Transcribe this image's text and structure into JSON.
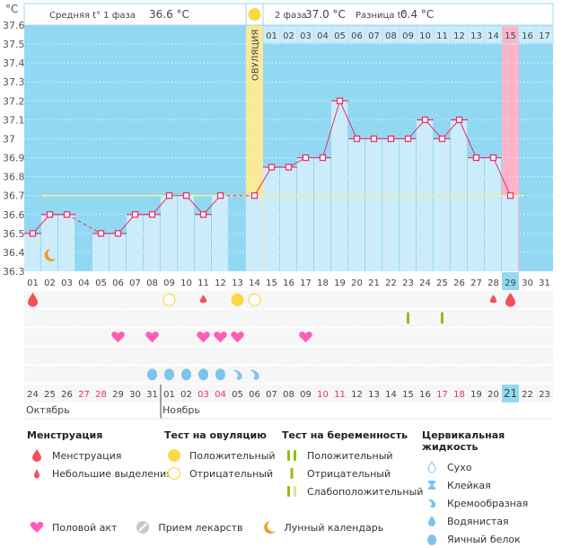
{
  "chart_data": {
    "type": "line",
    "title": "",
    "ylabel": "°C",
    "ylim": [
      36.3,
      37.6
    ],
    "yticks": [
      "37.6",
      "37.5",
      "37.4",
      "37.3",
      "37.2",
      "37.1",
      "37",
      "36.9",
      "36.8",
      "36.7",
      "36.6",
      "36.5",
      "36.4",
      "36.3"
    ],
    "cycle_days": [
      "01",
      "02",
      "03",
      "04",
      "05",
      "06",
      "07",
      "08",
      "09",
      "10",
      "11",
      "12",
      "13",
      "14",
      "15",
      "16",
      "17",
      "18",
      "19",
      "20",
      "21",
      "22",
      "23",
      "24",
      "25",
      "26",
      "27",
      "28",
      "29",
      "30",
      "31"
    ],
    "phase2_days": [
      "01",
      "02",
      "03",
      "04",
      "05",
      "06",
      "07",
      "08",
      "09",
      "10",
      "11",
      "12",
      "13",
      "14",
      "15",
      "16",
      "17"
    ],
    "calendar_dates": [
      "24",
      "25",
      "26",
      "27",
      "28",
      "29",
      "30",
      "31",
      "01",
      "02",
      "03",
      "04",
      "05",
      "06",
      "07",
      "08",
      "09",
      "10",
      "11",
      "12",
      "13",
      "14",
      "15",
      "16",
      "17",
      "18",
      "19",
      "20",
      "21",
      "22",
      "23"
    ],
    "weekend_dates_idx": [
      3,
      4,
      10,
      11,
      17,
      18,
      24,
      25
    ],
    "months": [
      {
        "label": "Октябрь",
        "start_idx": 0
      },
      {
        "label": "Ноябрь",
        "start_idx": 8
      }
    ],
    "series": [
      {
        "name": "Базальная температура",
        "values": [
          36.5,
          36.6,
          36.6,
          null,
          36.5,
          36.5,
          36.6,
          36.6,
          36.7,
          36.7,
          36.6,
          36.7,
          null,
          36.7,
          36.85,
          36.85,
          36.9,
          36.9,
          37.2,
          37.0,
          37.0,
          37.0,
          37.0,
          37.1,
          37.0,
          37.1,
          36.9,
          36.9,
          36.7,
          null,
          null
        ]
      }
    ],
    "coverline": 36.7,
    "ovulation_day_idx": 13,
    "ovulation_label": "ОВУЛЯЦИЯ",
    "highlight_day_idx": 28,
    "highlight_phase2_label": "15",
    "today_date_idx": 28,
    "moon_day_idx": 1,
    "stats": {
      "phase1_label": "Средняя t° 1 фаза",
      "phase1_value": "36.6 °C",
      "phase2_label": "2 фаза",
      "phase2_value": "37.0 °C",
      "diff_label": "Разница t°",
      "diff_value": "0.4 °C"
    },
    "rows": {
      "menstruation": [
        {
          "idx": 0,
          "type": "heavy"
        },
        {
          "idx": 10,
          "type": "light"
        },
        {
          "idx": 27,
          "type": "light"
        },
        {
          "idx": 28,
          "type": "heavy"
        }
      ],
      "ovulation_test": [
        {
          "idx": 8,
          "type": "negative"
        },
        {
          "idx": 12,
          "type": "positive"
        },
        {
          "idx": 13,
          "type": "negative"
        }
      ],
      "pregnancy_test": [
        {
          "idx": 22,
          "type": "negative"
        },
        {
          "idx": 24,
          "type": "negative"
        }
      ],
      "intercourse": [
        5,
        7,
        10,
        11,
        12,
        16
      ],
      "cervical_fluid": [
        {
          "idx": 7,
          "type": "egg-white"
        },
        {
          "idx": 8,
          "type": "egg-white"
        },
        {
          "idx": 9,
          "type": "egg-white"
        },
        {
          "idx": 10,
          "type": "egg-white"
        },
        {
          "idx": 11,
          "type": "egg-white"
        },
        {
          "idx": 12,
          "type": "creamy"
        },
        {
          "idx": 13,
          "type": "creamy"
        }
      ]
    },
    "colors": {
      "bg_blue": "#93d8f2",
      "bar": "#cdecfb",
      "line": "#e8306a",
      "coverline": "#f4ef8a",
      "ovulation": "#fbe99a",
      "highlight": "#fbb4c8",
      "drop": "#f4505a",
      "heart": "#ff5cb8",
      "sun": "#fcd848",
      "preg": "#92bd12",
      "fluid": "#7cc4ee",
      "moon": "#f39a1a",
      "weekend": "#e8306a"
    }
  },
  "legend": {
    "menstruation": {
      "title": "Менструация",
      "items": [
        "Менструация",
        "Небольшие выделения"
      ]
    },
    "ovulation_test": {
      "title": "Тест на овуляцию",
      "items": [
        "Положительный",
        "Отрицательный"
      ]
    },
    "pregnancy_test": {
      "title": "Тест на беременность",
      "items": [
        "Положительный",
        "Отрицательный",
        "Слабоположительный"
      ]
    },
    "cervical_fluid": {
      "title": "Цервикальная жидкость",
      "items": [
        "Сухо",
        "Клейкая",
        "Кремообразная",
        "Водянистая",
        "Яичный белок"
      ]
    },
    "other": {
      "items": [
        "Половой акт",
        "Прием лекарств",
        "Лунный календарь"
      ]
    }
  }
}
